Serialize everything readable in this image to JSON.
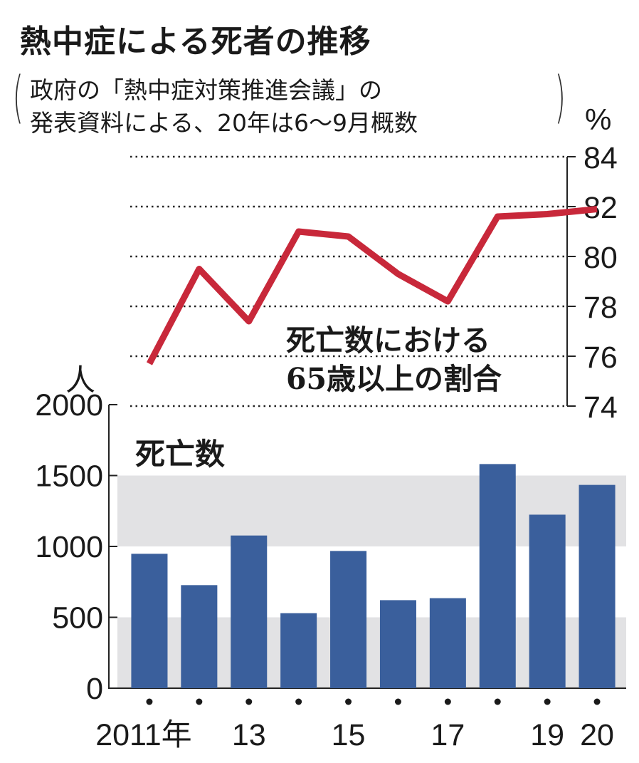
{
  "title": "熱中症による死者の推移",
  "subtitle": {
    "line1": "政府の「熱中症対策推進会議」の",
    "line2": "発表資料による、20年は6～9月概数"
  },
  "chart_data": [
    {
      "type": "line",
      "title": "死亡数における65歳以上の割合",
      "title_lines": [
        "死亡数における",
        "65歳以上の割合"
      ],
      "ylabel": "%",
      "ylim": [
        74,
        84
      ],
      "yticks": [
        "84",
        "82",
        "80",
        "78",
        "76",
        "74"
      ],
      "x": [
        2011,
        2012,
        2013,
        2014,
        2015,
        2016,
        2017,
        2018,
        2019,
        2020
      ],
      "values": [
        75.7,
        79.5,
        77.4,
        81.0,
        80.8,
        79.3,
        78.2,
        81.6,
        81.7,
        81.9
      ],
      "color": "#c8283a",
      "grid": "dotted"
    },
    {
      "type": "bar",
      "title": "死亡数",
      "ylabel": "人",
      "ylim": [
        0,
        2000
      ],
      "yticks": [
        "2000",
        "1500",
        "1000",
        "500",
        "0"
      ],
      "categories": [
        2011,
        2012,
        2013,
        2014,
        2015,
        2016,
        2017,
        2018,
        2019,
        2020
      ],
      "values": [
        948,
        727,
        1077,
        529,
        968,
        621,
        635,
        1581,
        1224,
        1434
      ],
      "xtick_labels": [
        "2011年",
        "",
        "13",
        "",
        "15",
        "",
        "17",
        "",
        "19",
        "20"
      ],
      "color": "#3a5f9c",
      "band_color": "#e2e2e4"
    }
  ]
}
